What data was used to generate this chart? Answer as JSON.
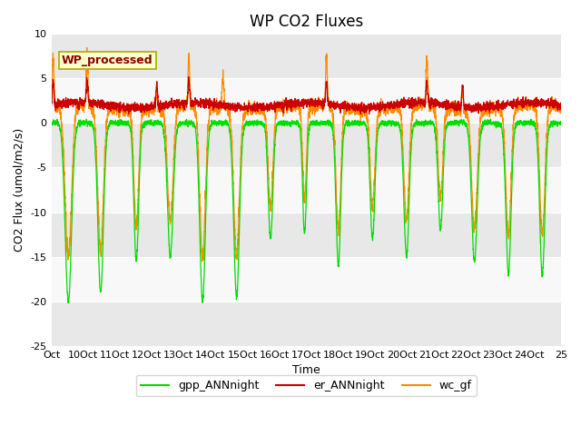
{
  "title": "WP CO2 Fluxes",
  "xlabel": "Time",
  "ylabel": "CO2 Flux (umol/m2/s)",
  "ylim": [
    -25,
    10
  ],
  "yticks": [
    -25,
    -20,
    -15,
    -10,
    -5,
    0,
    5,
    10
  ],
  "xtick_labels": [
    "Oct",
    "10Oct",
    "11Oct",
    "12Oct",
    "13Oct",
    "14Oct",
    "15Oct",
    "16Oct",
    "17Oct",
    "18Oct",
    "19Oct",
    "20Oct",
    "21Oct",
    "22Oct",
    "23Oct",
    "24Oct",
    "25"
  ],
  "annotation_text": "WP_processed",
  "annotation_color": "#8B0000",
  "annotation_box_facecolor": "#FFFFCC",
  "annotation_box_edgecolor": "#AAAA00",
  "gpp_color": "#00DD00",
  "er_color": "#CC0000",
  "wc_color": "#FF8C00",
  "legend_labels": [
    "gpp_ANNnight",
    "er_ANNnight",
    "wc_gf"
  ],
  "n_points": 3600,
  "n_days": 15,
  "band_colors": [
    "#E8E8E8",
    "#F8F8F8"
  ],
  "title_fontsize": 12,
  "label_fontsize": 9,
  "tick_fontsize": 8,
  "legend_fontsize": 9
}
